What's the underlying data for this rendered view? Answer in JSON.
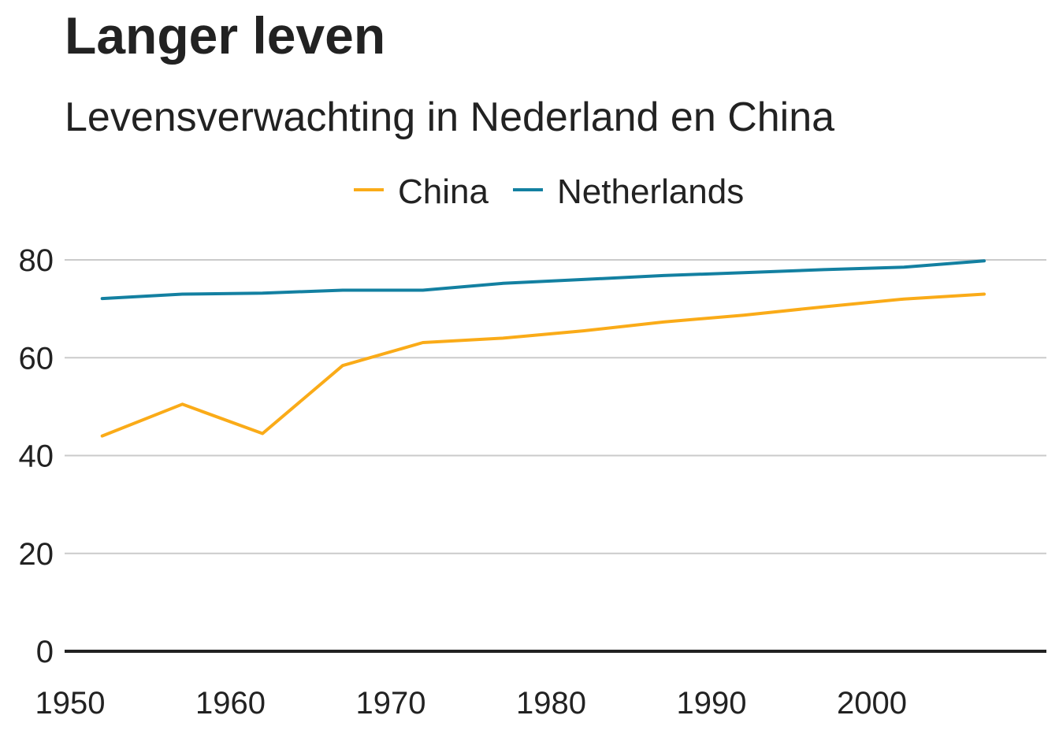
{
  "chart_data": {
    "type": "line",
    "title": "Langer leven",
    "subtitle": "Levensverwachting in Nederland en China",
    "xlabel": "",
    "ylabel": "",
    "x": [
      1952,
      1957,
      1962,
      1967,
      1972,
      1977,
      1982,
      1987,
      1992,
      1997,
      2002,
      2007
    ],
    "xlim": [
      1950,
      2010
    ],
    "ylim": [
      0,
      80
    ],
    "x_ticks": [
      1950,
      1960,
      1970,
      1980,
      1990,
      2000
    ],
    "y_ticks": [
      0,
      20,
      40,
      60,
      80
    ],
    "grid": true,
    "legend_position": "top",
    "series": [
      {
        "name": "China",
        "color": "#FAAB18",
        "values": [
          44.0,
          50.5,
          44.5,
          58.4,
          63.1,
          64.0,
          65.5,
          67.3,
          68.7,
          70.4,
          72.0,
          73.0
        ]
      },
      {
        "name": "Netherlands",
        "color": "#1380A1",
        "values": [
          72.1,
          73.0,
          73.2,
          73.8,
          73.8,
          75.2,
          76.0,
          76.8,
          77.4,
          78.0,
          78.5,
          79.8
        ]
      }
    ]
  }
}
